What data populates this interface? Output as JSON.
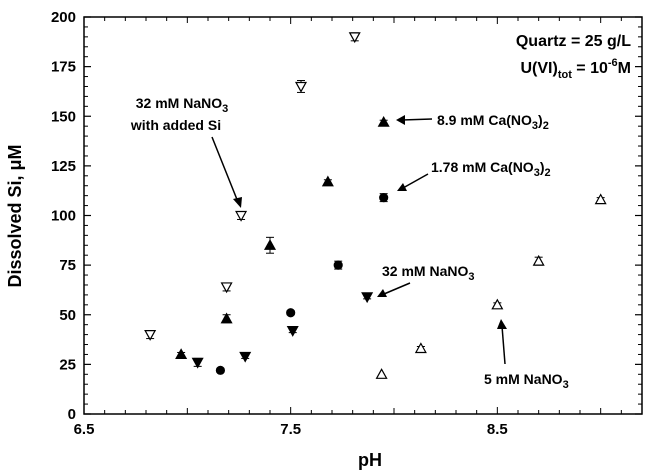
{
  "chart_data": {
    "type": "scatter",
    "xlabel": "pH",
    "ylabel": "Dissolved Si, μM",
    "xlim": [
      6.5,
      9.2
    ],
    "ylim": [
      0,
      200
    ],
    "x_ticks": [
      {
        "value": 6.5,
        "label": "6.5"
      },
      {
        "value": 7.5,
        "label": "7.5"
      },
      {
        "value": 8.5,
        "label": "8.5"
      }
    ],
    "y_ticks": [
      {
        "value": 0,
        "label": "0"
      },
      {
        "value": 25,
        "label": "25"
      },
      {
        "value": 50,
        "label": "50"
      },
      {
        "value": 75,
        "label": "75"
      },
      {
        "value": 100,
        "label": "100"
      },
      {
        "value": 125,
        "label": "125"
      },
      {
        "value": 150,
        "label": "150"
      },
      {
        "value": 175,
        "label": "175"
      },
      {
        "value": 200,
        "label": "200"
      }
    ],
    "info_box": {
      "line1": "Quartz = 25 g/L",
      "line2_main": "U(VI)",
      "line2_sub": "tot",
      "line2_mid": " = 10",
      "line2_sup": "-6",
      "line2_end": "M"
    },
    "series": [
      {
        "marker": "triangle-down-open",
        "label_parts": {
          "a": "32 mM NaNO",
          "sub": "3",
          "b": "with added Si"
        },
        "points": [
          {
            "x": 6.82,
            "y": 40,
            "err": 2
          },
          {
            "x": 7.19,
            "y": 64,
            "err": 2
          },
          {
            "x": 7.26,
            "y": 100,
            "err": 2
          },
          {
            "x": 7.55,
            "y": 165,
            "err": 3
          },
          {
            "x": 7.81,
            "y": 190,
            "err": 2
          }
        ]
      },
      {
        "marker": "triangle-up-filled",
        "label_parts": {
          "a": "8.9 mM Ca(NO",
          "sub": "3",
          "b": ")",
          "sub2": "2"
        },
        "points": [
          {
            "x": 6.97,
            "y": 30,
            "err": 1
          },
          {
            "x": 7.19,
            "y": 48,
            "err": 2
          },
          {
            "x": 7.4,
            "y": 85,
            "err": 4
          },
          {
            "x": 7.68,
            "y": 117,
            "err": 1
          },
          {
            "x": 7.95,
            "y": 147,
            "err": 1
          }
        ]
      },
      {
        "marker": "circle-filled",
        "label_parts": {
          "a": "1.78 mM Ca(NO",
          "sub": "3",
          "b": ")",
          "sub2": "2"
        },
        "points": [
          {
            "x": 7.16,
            "y": 22,
            "err": 1
          },
          {
            "x": 7.5,
            "y": 51,
            "err": 1
          },
          {
            "x": 7.73,
            "y": 75,
            "err": 2
          },
          {
            "x": 7.95,
            "y": 109,
            "err": 2
          }
        ]
      },
      {
        "marker": "triangle-down-filled",
        "label_parts": {
          "a": "32 mM NaNO",
          "sub": "3"
        },
        "points": [
          {
            "x": 7.05,
            "y": 26,
            "err": 2
          },
          {
            "x": 7.28,
            "y": 29,
            "err": 1
          },
          {
            "x": 7.51,
            "y": 42,
            "err": 1
          },
          {
            "x": 7.87,
            "y": 59,
            "err": 1
          }
        ]
      },
      {
        "marker": "triangle-up-open",
        "label_parts": {
          "a": "5 mM NaNO",
          "sub": "3"
        },
        "points": [
          {
            "x": 7.94,
            "y": 20,
            "err": 0
          },
          {
            "x": 8.13,
            "y": 33,
            "err": 1
          },
          {
            "x": 8.5,
            "y": 55,
            "err": 1
          },
          {
            "x": 8.7,
            "y": 77,
            "err": 2
          },
          {
            "x": 9.0,
            "y": 108,
            "err": 1
          }
        ]
      }
    ]
  }
}
